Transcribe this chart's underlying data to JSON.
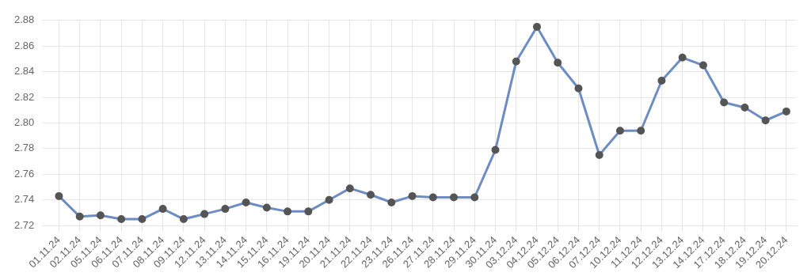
{
  "chart_data": {
    "type": "line",
    "categories": [
      "01.11.24",
      "02.11.24",
      "05.11.24",
      "06.11.24",
      "07.11.24",
      "08.11.24",
      "09.11.24",
      "12.11.24",
      "13.11.24",
      "14.11.24",
      "15.11.24",
      "16.11.24",
      "19.11.24",
      "20.11.24",
      "21.11.24",
      "22.11.24",
      "23.11.24",
      "26.11.24",
      "27.11.24",
      "28.11.24",
      "29.11.24",
      "30.11.24",
      "03.12.24",
      "04.12.24",
      "05.12.24",
      "06.12.24",
      "07.12.24",
      "10.12.24",
      "11.12.24",
      "12.12.24",
      "13.12.24",
      "14.12.24",
      "17.12.24",
      "18.12.24",
      "19.12.24",
      "20.12.24"
    ],
    "series": [
      {
        "color": "#6d8cc4",
        "values": [
          2.743,
          2.727,
          2.728,
          2.725,
          2.725,
          2.733,
          2.725,
          2.729,
          2.733,
          2.738,
          2.734,
          2.731,
          2.731,
          2.74,
          2.749,
          2.744,
          2.738,
          2.743,
          2.742,
          2.742,
          2.742,
          2.779,
          2.848,
          2.875,
          2.847,
          2.827,
          2.775,
          2.794,
          2.794,
          2.833,
          2.851,
          2.845,
          2.816,
          2.812,
          2.802,
          2.809
        ]
      }
    ],
    "ylim": [
      2.72,
      2.88
    ],
    "yticks": [
      2.72,
      2.74,
      2.76,
      2.78,
      {
        "value": 2.8,
        "label": "2.80"
      },
      2.82,
      2.84,
      2.86,
      2.88
    ],
    "grid": true,
    "marker": "circle",
    "line_style": "solid",
    "legend": false
  }
}
